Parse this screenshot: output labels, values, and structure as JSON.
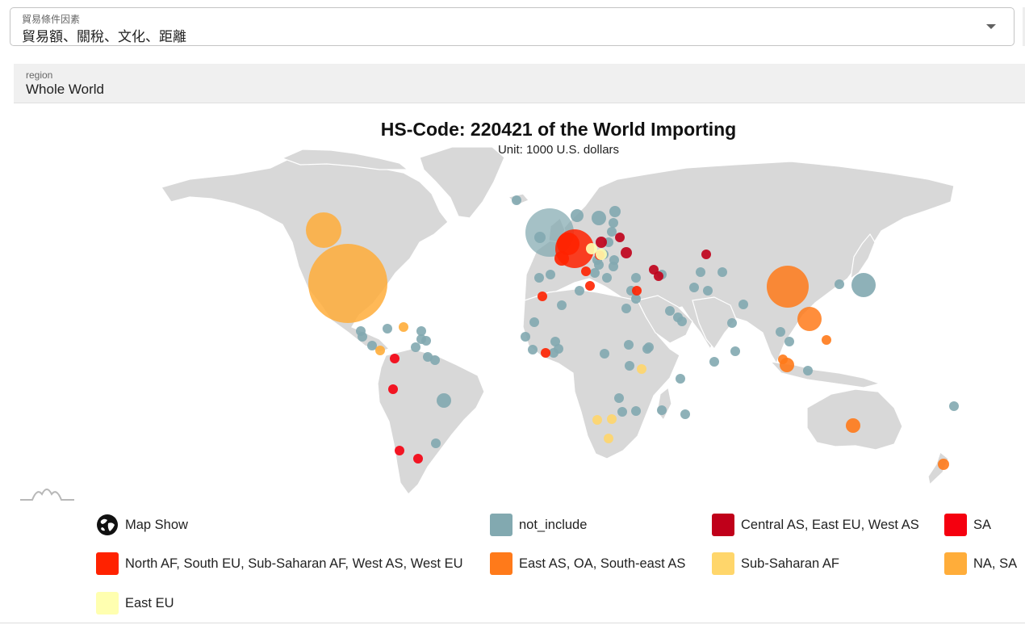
{
  "selector": {
    "label": "貿易條件因素",
    "value": "貿易額、關稅、文化、距離"
  },
  "region_filter": {
    "label": "region",
    "value": "Whole World"
  },
  "map": {
    "title": "HS-Code: 220421 of the World Importing",
    "subtitle": "Unit: 1000 U.S. dollars",
    "colors": {
      "land": "#d8d8d8",
      "not_include": "#82a9b0",
      "central_as_east_eu_west_as": "#c0001a",
      "sa": "#f5000f",
      "north_af_south_eu": "#ff2200",
      "east_as_oa_southeast_as": "#ff7a1a",
      "sub_saharan_af": "#ffd66b",
      "na_sa": "#ffad3a",
      "east_eu": "#ffffb0"
    }
  },
  "legend": {
    "toggle_label": "Map Show",
    "toggle_icon": "globe-icon",
    "items": [
      {
        "label": "not_include",
        "color": "#82a9b0"
      },
      {
        "label": "Central AS, East EU, West AS",
        "color": "#c0001a"
      },
      {
        "label": "SA",
        "color": "#f5000f"
      },
      {
        "label": "North AF, South EU, Sub-Saharan AF, West AS, West EU",
        "color": "#ff2200"
      },
      {
        "label": "East AS, OA, South-east AS",
        "color": "#ff7a1a"
      },
      {
        "label": "Sub-Saharan AF",
        "color": "#ffd66b"
      },
      {
        "label": "NA, SA",
        "color": "#ffad3a"
      },
      {
        "label": "East EU",
        "color": "#ffffb0"
      }
    ]
  }
}
